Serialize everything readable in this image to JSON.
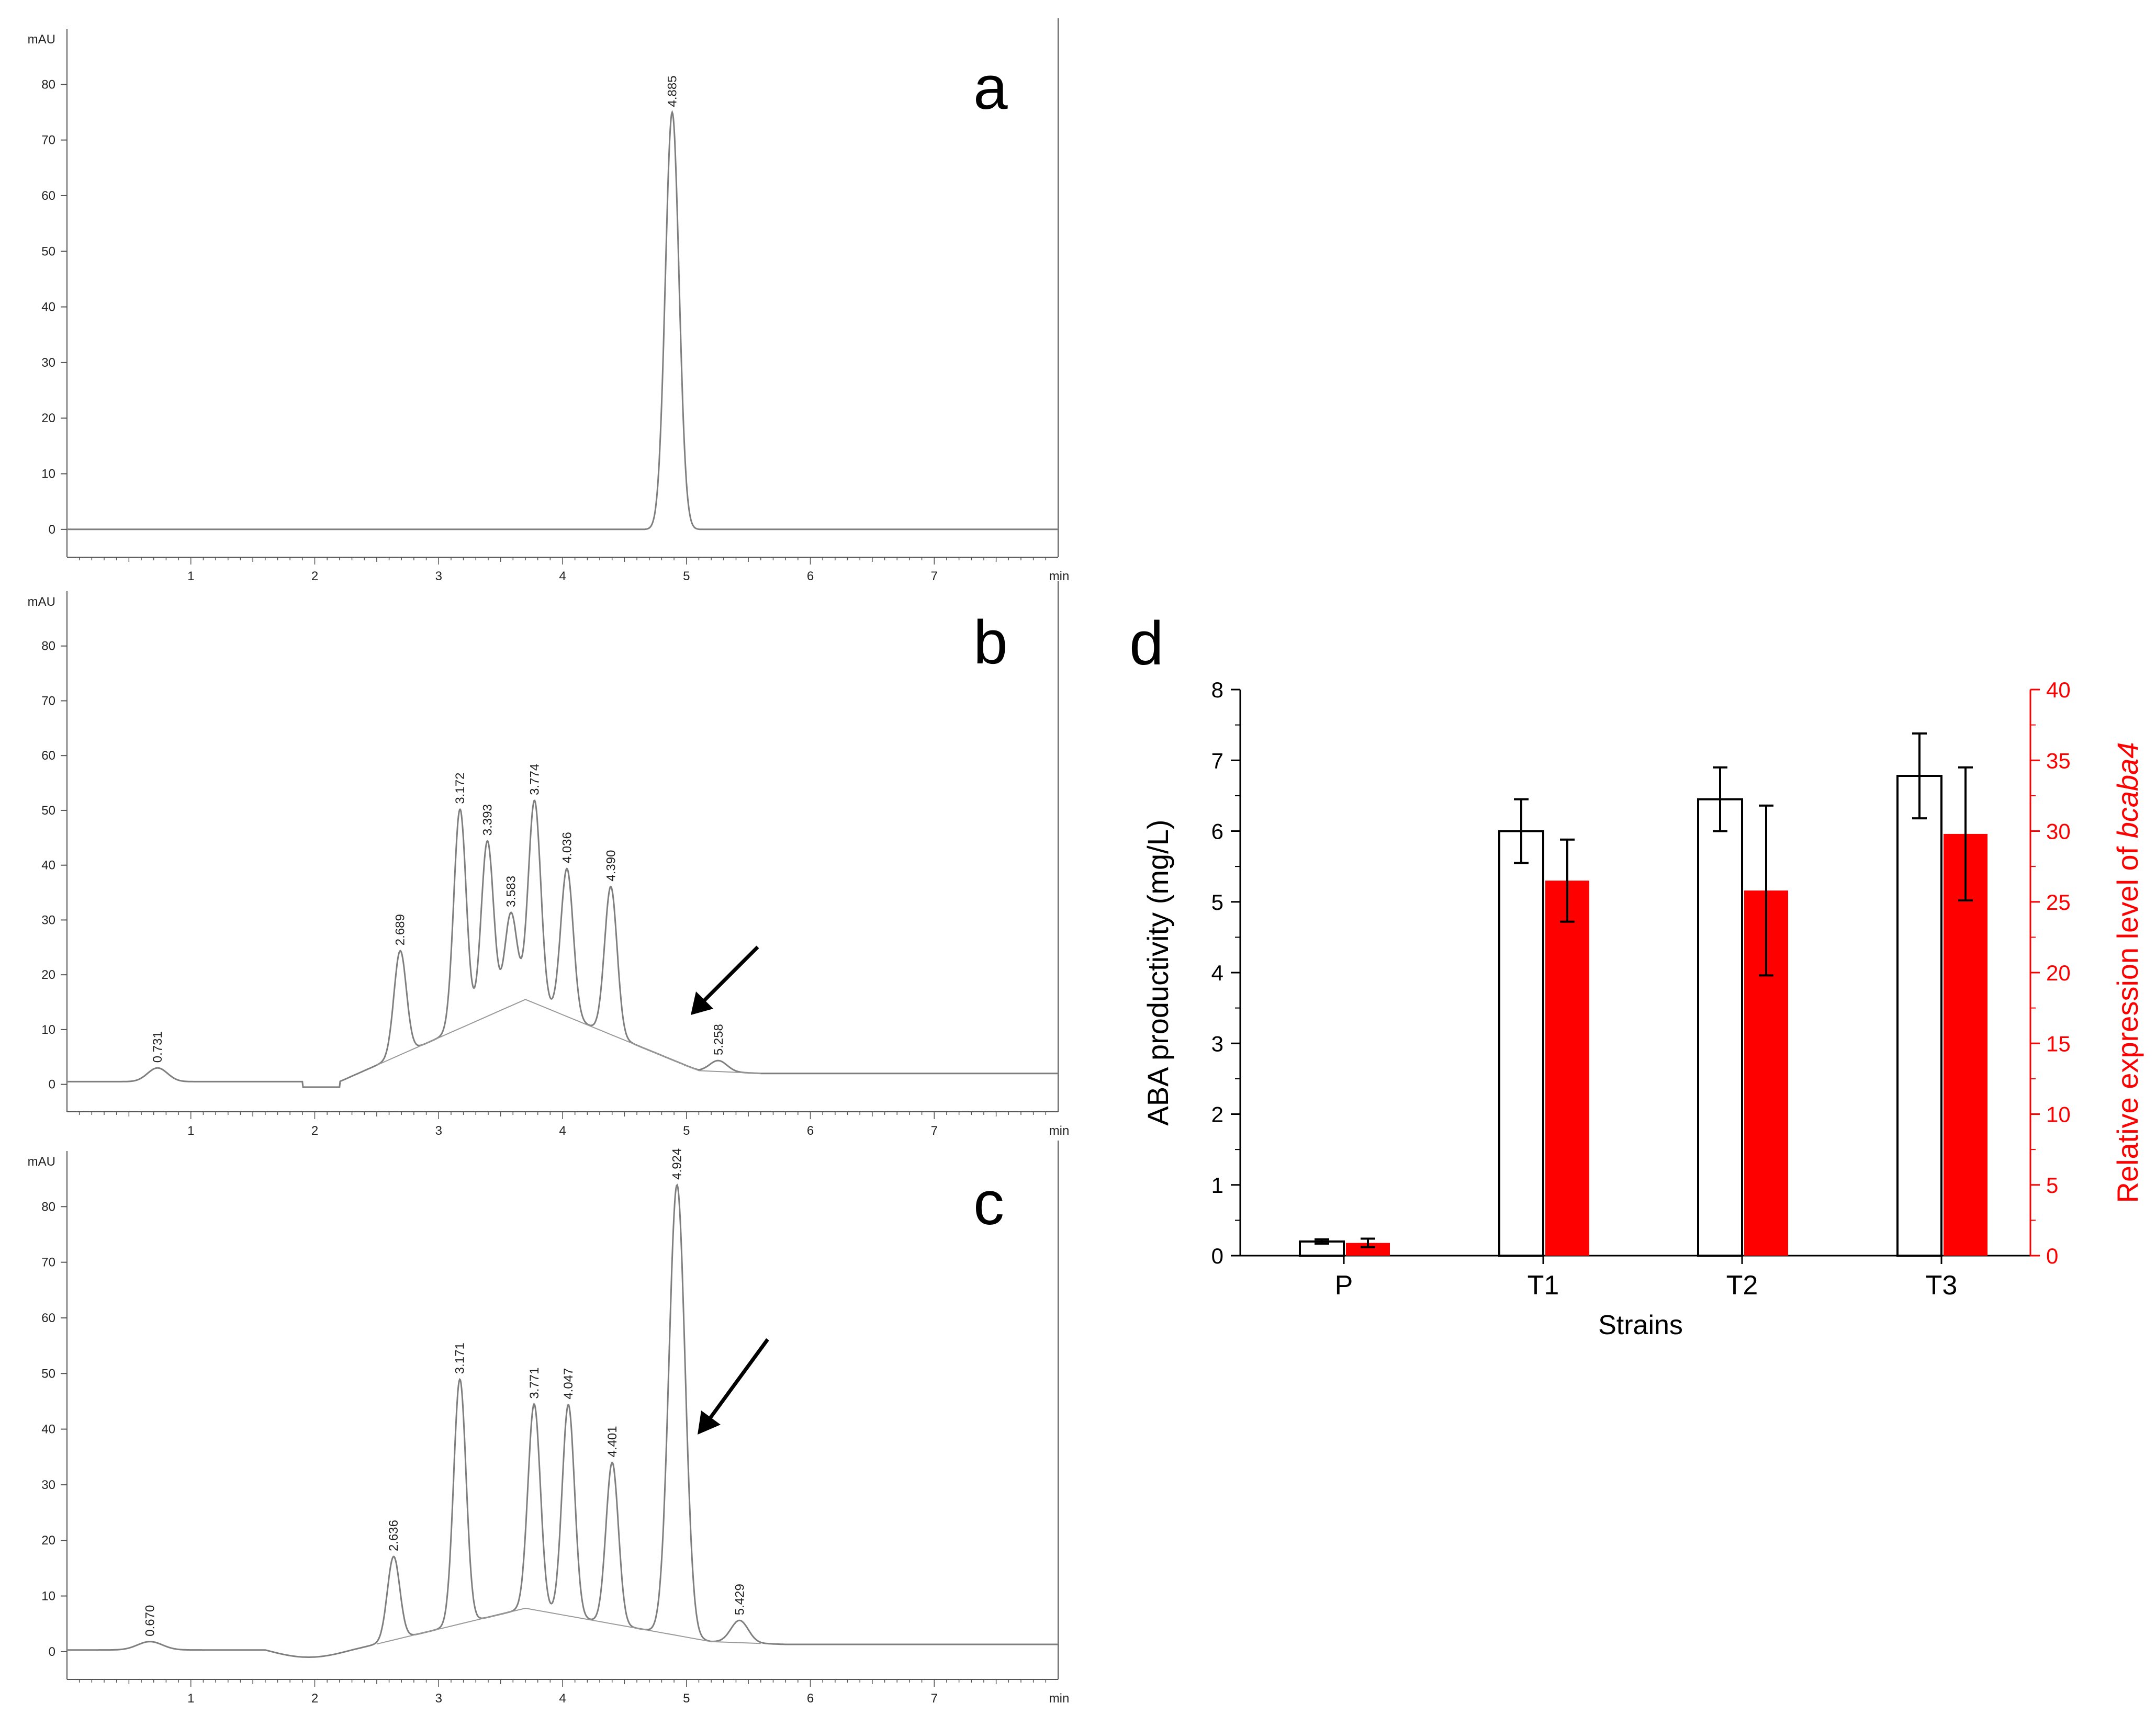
{
  "chart_data": [
    {
      "panel": "a",
      "type": "line",
      "y_unit": "mAU",
      "x_unit": "min",
      "y_ticks": [
        0,
        10,
        20,
        30,
        40,
        50,
        60,
        70,
        80
      ],
      "x_ticks": [
        1,
        2,
        3,
        4,
        5,
        6,
        7
      ],
      "xlim": [
        0,
        8
      ],
      "ylim": [
        -5,
        90
      ],
      "peaks": [
        {
          "rt": 4.885,
          "label": "4.885",
          "height": 75
        }
      ]
    },
    {
      "panel": "b",
      "type": "line",
      "y_unit": "mAU",
      "x_unit": "min",
      "y_ticks": [
        0,
        10,
        20,
        30,
        40,
        50,
        60,
        70,
        80
      ],
      "x_ticks": [
        1,
        2,
        3,
        4,
        5,
        6,
        7
      ],
      "xlim": [
        0,
        8
      ],
      "ylim": [
        -5,
        90
      ],
      "peaks": [
        {
          "rt": 0.731,
          "label": "0.731",
          "height": 2.5
        },
        {
          "rt": 2.689,
          "label": "2.689",
          "height": 19
        },
        {
          "rt": 3.172,
          "label": "3.172",
          "height": 40
        },
        {
          "rt": 3.393,
          "label": "3.393",
          "height": 32
        },
        {
          "rt": 3.583,
          "label": "3.583",
          "height": 17
        },
        {
          "rt": 3.774,
          "label": "3.774",
          "height": 37
        },
        {
          "rt": 4.036,
          "label": "4.036",
          "height": 27
        },
        {
          "rt": 4.39,
          "label": "4.390",
          "height": 27
        },
        {
          "rt": 5.258,
          "label": "5.258",
          "height": 2
        }
      ]
    },
    {
      "panel": "c",
      "type": "line",
      "y_unit": "mAU",
      "x_unit": "min",
      "y_ticks": [
        0,
        10,
        20,
        30,
        40,
        50,
        60,
        70,
        80
      ],
      "x_ticks": [
        1,
        2,
        3,
        4,
        5,
        6,
        7
      ],
      "xlim": [
        0,
        8
      ],
      "ylim": [
        -5,
        90
      ],
      "peaks": [
        {
          "rt": 0.67,
          "label": "0.670",
          "height": 1.5
        },
        {
          "rt": 2.636,
          "label": "2.636",
          "height": 15
        },
        {
          "rt": 3.171,
          "label": "3.171",
          "height": 44
        },
        {
          "rt": 3.771,
          "label": "3.771",
          "height": 37
        },
        {
          "rt": 4.047,
          "label": "4.047",
          "height": 38
        },
        {
          "rt": 4.401,
          "label": "4.401",
          "height": 29
        },
        {
          "rt": 4.924,
          "label": "4.924",
          "height": 81
        },
        {
          "rt": 5.429,
          "label": "5.429",
          "height": 4
        }
      ]
    },
    {
      "panel": "d",
      "type": "bar",
      "categories": [
        "P",
        "T1",
        "T2",
        "T3"
      ],
      "xlabel": "Strains",
      "ylabel": "ABA productivity (mg/L)",
      "ylabel_right_prefix": "Relative expression level of ",
      "ylabel_right_gene": "bcaba4",
      "ylim": [
        0,
        8
      ],
      "ylim_right": [
        0,
        40
      ],
      "y_ticks": [
        0,
        1,
        2,
        3,
        4,
        5,
        6,
        7,
        8
      ],
      "y_ticks_right": [
        0,
        5,
        10,
        15,
        20,
        25,
        30,
        35,
        40
      ],
      "series": [
        {
          "name": "ABA productivity",
          "axis": "left",
          "color": "#ffffff",
          "values": [
            0.2,
            6.0,
            6.45,
            6.78
          ],
          "errors": [
            0.03,
            0.45,
            0.45,
            0.6
          ]
        },
        {
          "name": "Relative expression level of bcaba4",
          "axis": "right",
          "color": "#ff0000",
          "values": [
            0.9,
            26.5,
            25.8,
            29.8
          ],
          "errors": [
            0.3,
            2.9,
            6.0,
            4.7
          ]
        }
      ]
    }
  ],
  "colors": {
    "trace": "#7f7f7f",
    "axis": "#000000",
    "red": "#ff0000"
  }
}
